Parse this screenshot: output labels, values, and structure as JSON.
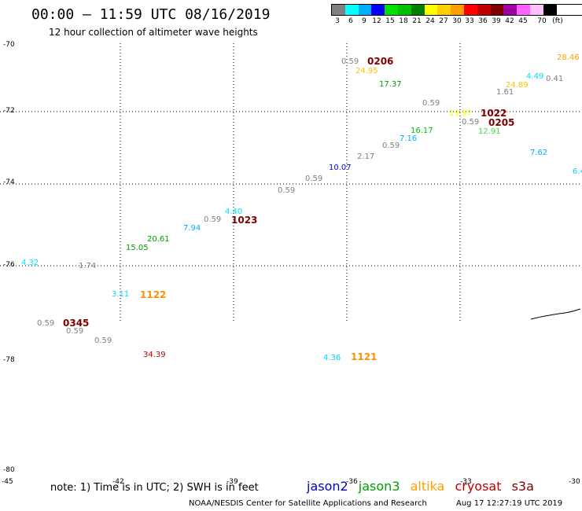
{
  "title": "00:00 – 11:59 UTC 08/16/2019",
  "subtitle": "12 hour collection of altimeter wave heights",
  "legend": {
    "colors": [
      "#808080",
      "#00ffff",
      "#00b0ff",
      "#0000ff",
      "#00e000",
      "#00c000",
      "#008000",
      "#ffff00",
      "#ffd000",
      "#ffa000",
      "#ff0000",
      "#c00000",
      "#800000",
      "#a000a0",
      "#ff60ff",
      "#ffc0ff",
      "#000000"
    ],
    "labels": [
      "3",
      "6",
      "9",
      "12",
      "15",
      "18",
      "21",
      "24",
      "27",
      "30",
      "33",
      "36",
      "39",
      "42",
      "45",
      "70",
      "(ft)"
    ]
  },
  "lat_labels": [
    "-70",
    "-72",
    "-74",
    "-76",
    "-78",
    "-80"
  ],
  "lon_labels": [
    "-45",
    "-42",
    "-39",
    "-36",
    "-33",
    "-30"
  ],
  "observations": [
    {
      "text": "0.59",
      "color": "#808080"
    },
    {
      "text": "0206",
      "color": "#800000",
      "big": true
    },
    {
      "text": "24.95",
      "color": "#ffc000"
    },
    {
      "text": "17.37",
      "color": "#00a000"
    },
    {
      "text": "28.46",
      "color": "#ffa000"
    },
    {
      "text": "4.49",
      "color": "#00e0ff"
    },
    {
      "text": "0.41",
      "color": "#808080"
    },
    {
      "text": "24.89",
      "color": "#ffc000"
    },
    {
      "text": "1.61",
      "color": "#808080"
    },
    {
      "text": "0.59",
      "color": "#808080"
    },
    {
      "text": "19.97",
      "color": "#ffff00"
    },
    {
      "text": "1022",
      "color": "#800000",
      "big": true
    },
    {
      "text": "0.59",
      "color": "#808080"
    },
    {
      "text": "0205",
      "color": "#800000",
      "big": true
    },
    {
      "text": "12.91",
      "color": "#40e040"
    },
    {
      "text": "16.17",
      "color": "#00c000"
    },
    {
      "text": "7.16",
      "color": "#00b0ff"
    },
    {
      "text": "0.59",
      "color": "#808080"
    },
    {
      "text": "2.17",
      "color": "#808080"
    },
    {
      "text": "7.62",
      "color": "#00b0ff"
    },
    {
      "text": "6.4",
      "color": "#00d0ff"
    },
    {
      "text": "10.07",
      "color": "#0000ff"
    },
    {
      "text": "0.59",
      "color": "#808080"
    },
    {
      "text": "0.59",
      "color": "#808080"
    },
    {
      "text": "4.40",
      "color": "#00e0ff"
    },
    {
      "text": "0.59",
      "color": "#808080"
    },
    {
      "text": "1023",
      "color": "#800000",
      "big": true
    },
    {
      "text": "7.94",
      "color": "#00b0ff"
    },
    {
      "text": "20.61",
      "color": "#00a000"
    },
    {
      "text": "15.05",
      "color": "#00a000"
    },
    {
      "text": "4.32",
      "color": "#00e0ff"
    },
    {
      "text": "1.74",
      "color": "#808080"
    },
    {
      "text": "3.11",
      "color": "#00e0ff"
    },
    {
      "text": "1122",
      "color": "#ff9000",
      "big": true
    },
    {
      "text": "0.59",
      "color": "#808080"
    },
    {
      "text": "0345",
      "color": "#800000",
      "big": true
    },
    {
      "text": "0.59",
      "color": "#808080"
    },
    {
      "text": "0.59",
      "color": "#808080"
    },
    {
      "text": "34.39",
      "color": "#c00000"
    },
    {
      "text": "4.36",
      "color": "#00d0ff"
    },
    {
      "text": "1121",
      "color": "#ff9000",
      "big": true
    }
  ],
  "note": "note: 1) Time is in UTC; 2) SWH is in feet",
  "satellites": [
    {
      "name": "jason2",
      "color": "#0000cc"
    },
    {
      "name": "jason3",
      "color": "#00a000"
    },
    {
      "name": "altika",
      "color": "#ffa000"
    },
    {
      "name": "cryosat",
      "color": "#c00000"
    },
    {
      "name": "s3a",
      "color": "#800000"
    }
  ],
  "credit": "NOAA/NESDIS Center for Satellite Applications and Research",
  "timestamp": "Aug 17 12:27:19 UTC 2019"
}
